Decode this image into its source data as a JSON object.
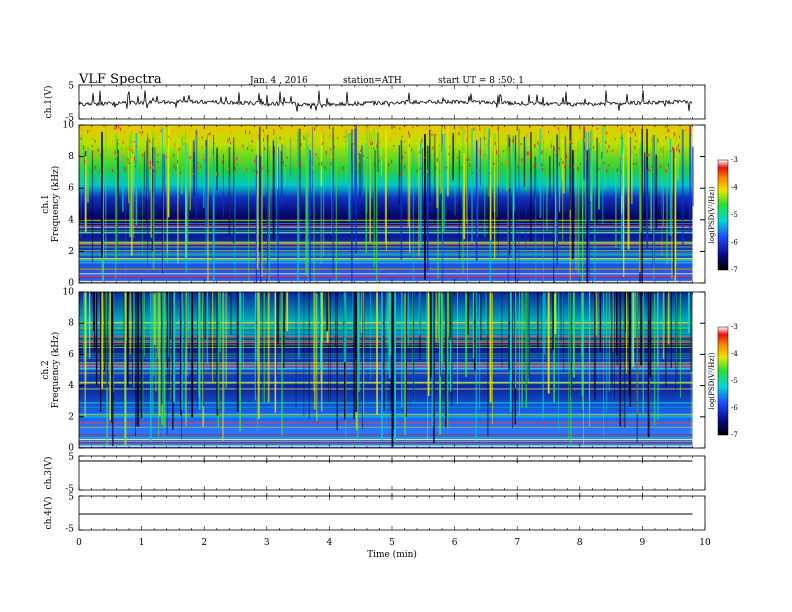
{
  "header": {
    "title": "VLF Spectra",
    "date": "Jan. 4 , 2016",
    "station": "station=ATH",
    "start": "start UT = 8 :50: 1"
  },
  "chart_data": [
    {
      "type": "line",
      "ylabel": "ch.1(V)",
      "ylim": [
        -5,
        5
      ],
      "yticks": [
        "5",
        "-5"
      ],
      "trace": "noisy waveform around ~0 V with frequent spikes"
    },
    {
      "type": "heatmap",
      "ylabel": "ch.1 Frequency (kHz)",
      "ylim": [
        0,
        10
      ],
      "yticks": [
        "0",
        "2",
        "4",
        "6",
        "8",
        "10"
      ],
      "colorbar": {
        "label": "log(PSD(V²/Hz))",
        "range": [
          -7,
          -3
        ],
        "ticks": [
          "-3",
          "-4",
          "-5",
          "-6",
          "-7"
        ]
      }
    },
    {
      "type": "heatmap",
      "ylabel": "ch.2 Frequency (kHz)",
      "ylim": [
        0,
        10
      ],
      "yticks": [
        "0",
        "2",
        "4",
        "6",
        "8",
        "10"
      ],
      "colorbar": {
        "label": "log(PSD(V²/Hz))",
        "range": [
          -7,
          -3
        ],
        "ticks": [
          "-3",
          "-4",
          "-5",
          "-6",
          "-7"
        ]
      }
    },
    {
      "type": "line",
      "ylabel": "ch.3(V)",
      "ylim": [
        -5,
        5
      ],
      "yticks": [
        "5",
        "-5"
      ],
      "trace": "flat near 0 V"
    },
    {
      "type": "line",
      "ylabel": "ch.4(V)",
      "ylim": [
        -5,
        5
      ],
      "yticks": [
        "5",
        "-5"
      ],
      "trace": "flat near 0 V"
    }
  ],
  "xaxis": {
    "label": "Time (min)",
    "xlim": [
      0,
      10
    ],
    "ticks": [
      "0",
      "1",
      "2",
      "3",
      "4",
      "5",
      "6",
      "7",
      "8",
      "9",
      "10"
    ],
    "data_end": 9.8
  },
  "colors": {
    "frame": "#000000",
    "background": "#ffffff"
  }
}
